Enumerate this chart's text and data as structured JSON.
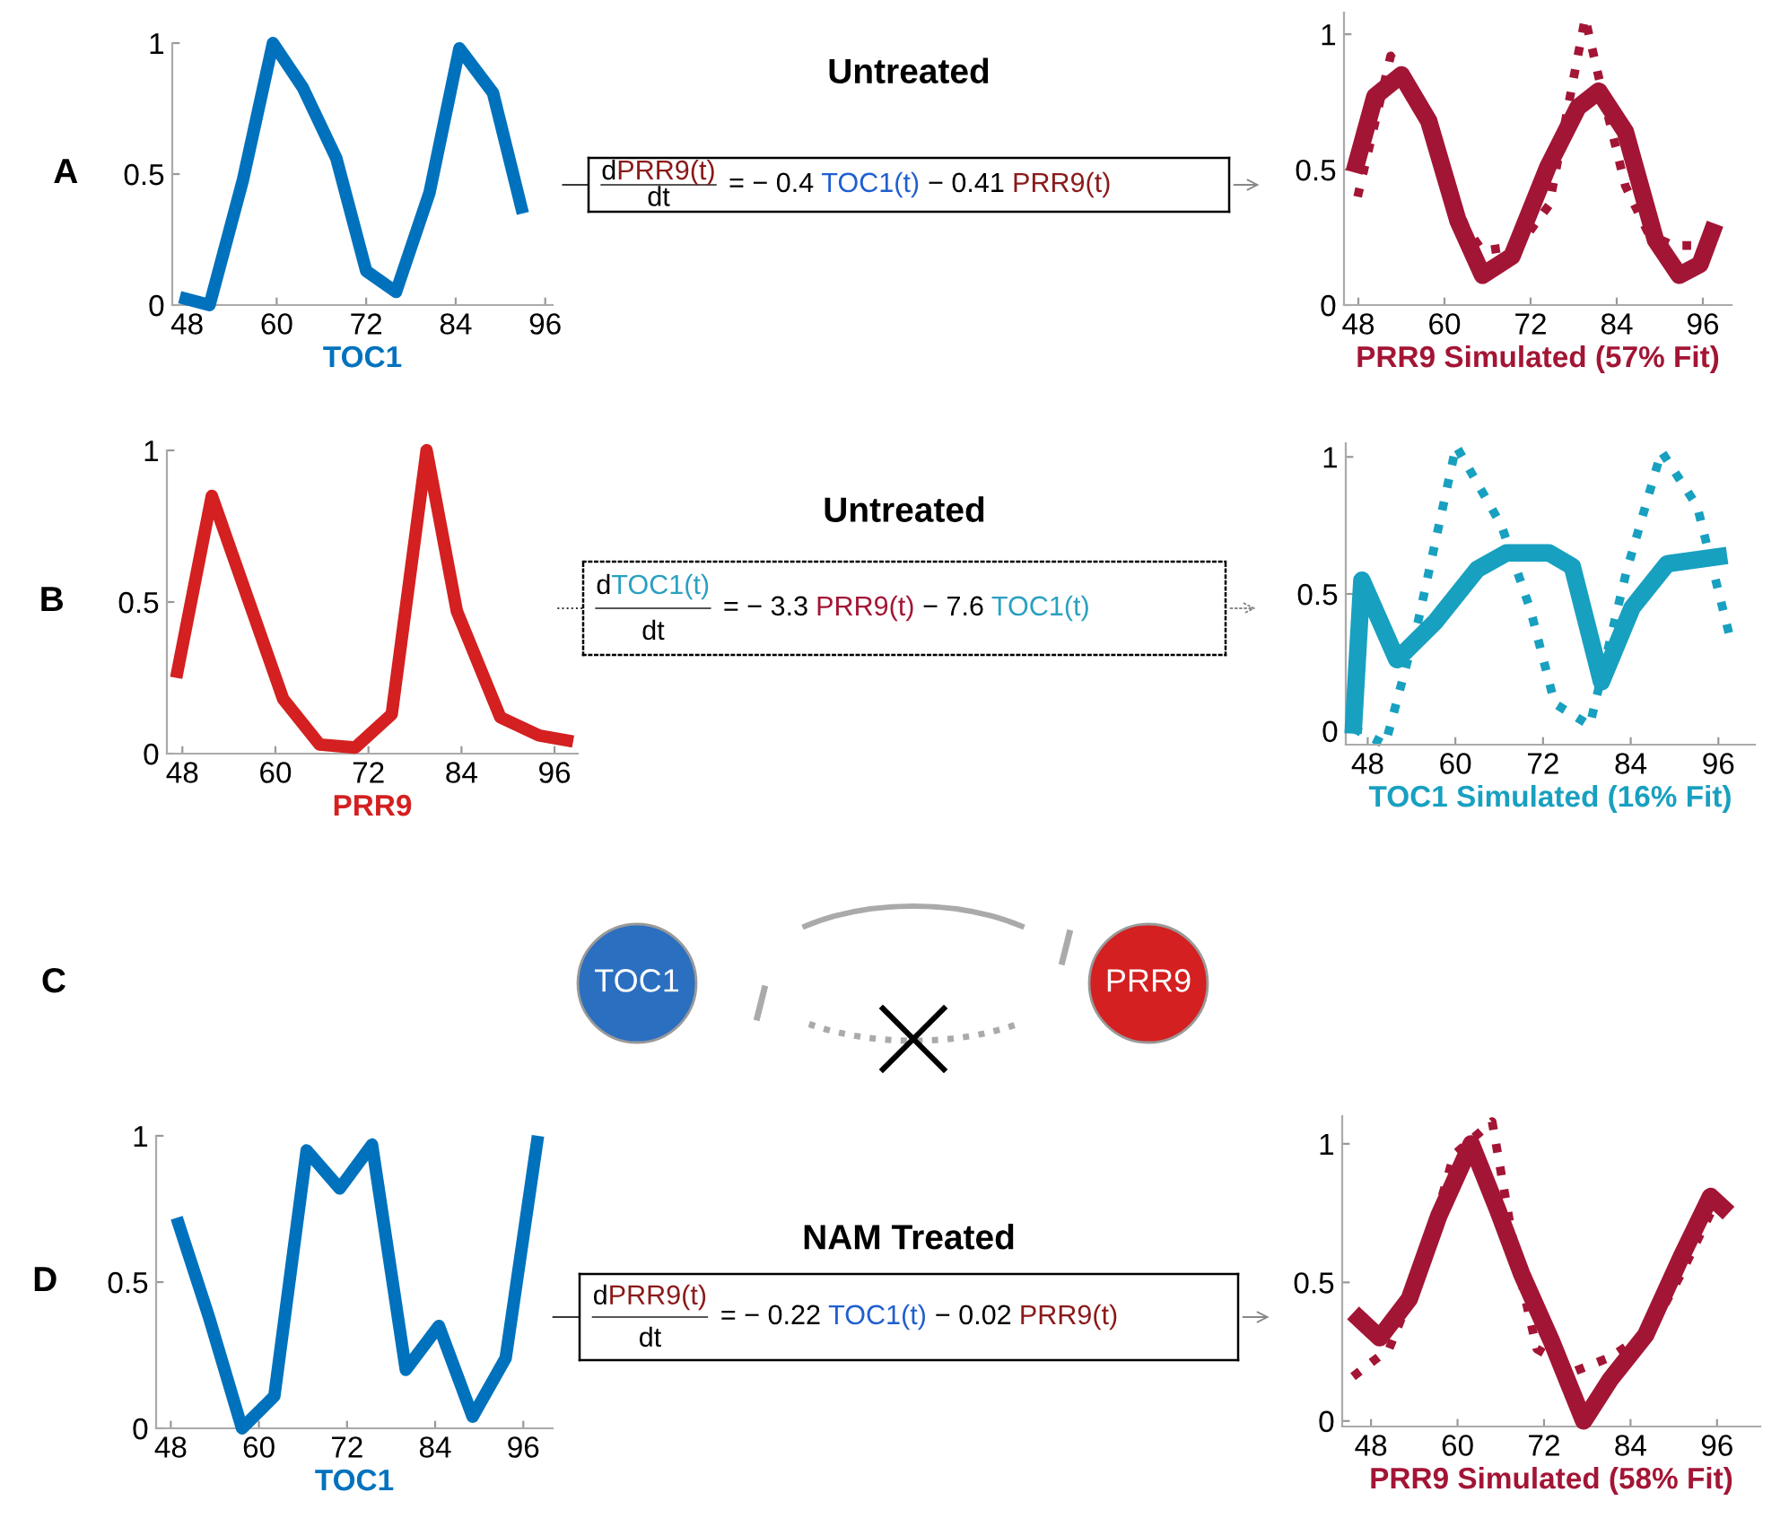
{
  "chart_data": [
    {
      "type": "line",
      "xlabel": "TOC1",
      "annotations": [
        "A"
      ],
      "xlim": [
        46,
        97
      ],
      "ylim": [
        0,
        1
      ],
      "xticks": [
        48,
        60,
        72,
        84,
        96
      ],
      "yticks": [
        0,
        0.5,
        1
      ],
      "series": [
        {
          "color": "#0072bd",
          "line_style": "solid",
          "x": [
            47,
            51,
            55.5,
            59.5,
            63.5,
            68,
            72,
            76,
            80.5,
            84.5,
            89,
            93
          ],
          "values": [
            0.03,
            0,
            0.48,
            1.0,
            0.83,
            0.56,
            0.13,
            0.05,
            0.43,
            0.98,
            0.81,
            0.35
          ]
        }
      ]
    },
    {
      "type": "other",
      "title": "Untreated",
      "annotations": [
        "d",
        "PRR9(t)",
        "dt",
        "= − 0.4 ",
        "TOC1(t)",
        " − 0.41 ",
        "PRR9(t)"
      ],
      "colors": [
        "#000000",
        "#8b1a1a",
        "#000000",
        "#000000",
        "#1f5fd0",
        "#000000",
        "#8b1a1a"
      ]
    },
    {
      "type": "line",
      "xlabel": "PRR9 Simulated (57% Fit)",
      "xlim": [
        46,
        100
      ],
      "ylim": [
        0,
        1.08
      ],
      "xticks": [
        48,
        60,
        72,
        84,
        96
      ],
      "yticks": [
        0,
        0.5,
        1
      ],
      "series": [
        {
          "color": "#a31535",
          "line_style": "solid",
          "x": [
            47.4,
            50.3,
            54,
            57.8,
            61.9,
            65.3,
            69.4,
            74.4,
            78.6,
            81.5,
            85.2,
            89.4,
            92.7,
            95.6,
            97.7
          ],
          "values": [
            0.49,
            0.77,
            0.85,
            0.68,
            0.31,
            0.11,
            0.18,
            0.51,
            0.73,
            0.79,
            0.64,
            0.24,
            0.11,
            0.15,
            0.3
          ]
        },
        {
          "color": "#a31535",
          "line_style": "dotted",
          "x": [
            47.9,
            52.5,
            57,
            62.9,
            65.3,
            70.4,
            74.6,
            77.5,
            79.6,
            81.5,
            85.2,
            88.5,
            91.9,
            95.2
          ],
          "values": [
            0.4,
            0.92,
            0.7,
            0.29,
            0.2,
            0.22,
            0.37,
            0.77,
            1.06,
            0.84,
            0.44,
            0.26,
            0.22,
            0.22
          ]
        }
      ]
    },
    {
      "type": "line",
      "xlabel": "PRR9",
      "annotations": [
        "B"
      ],
      "xlim": [
        46,
        99
      ],
      "ylim": [
        0,
        1
      ],
      "xticks": [
        48,
        60,
        72,
        84,
        96
      ],
      "yticks": [
        0,
        0.5,
        1
      ],
      "series": [
        {
          "color": "#d42020",
          "line_style": "solid",
          "x": [
            47.2,
            51.8,
            61,
            65.7,
            70.3,
            75,
            79.5,
            83.4,
            89,
            94,
            98.4
          ],
          "values": [
            0.25,
            0.85,
            0.18,
            0.03,
            0.02,
            0.13,
            1.0,
            0.47,
            0.12,
            0.06,
            0.04
          ]
        }
      ]
    },
    {
      "type": "other",
      "title": "Untreated",
      "annotations": [
        "d",
        "TOC1(t)",
        "dt",
        "= − 3.3 ",
        "PRR9(t)",
        " − 7.6 ",
        "TOC1(t)"
      ],
      "colors": [
        "#000000",
        "#2aa0c0",
        "#000000",
        "#000000",
        "#a31535",
        "#000000",
        "#2aa0c0"
      ]
    },
    {
      "type": "line",
      "xlabel": "TOC1 Simulated (16% Fit)",
      "xlim": [
        45,
        101
      ],
      "ylim": [
        -0.05,
        1.05
      ],
      "xticks": [
        48,
        60,
        72,
        84,
        96
      ],
      "yticks": [
        0,
        0.5,
        1
      ],
      "series": [
        {
          "color": "#18a0c0",
          "line_style": "solid",
          "x": [
            46,
            47.2,
            52,
            57.3,
            63,
            67,
            72.8,
            76,
            80,
            84.2,
            89,
            97.2
          ],
          "values": [
            -0.01,
            0.55,
            0.26,
            0.4,
            0.59,
            0.65,
            0.65,
            0.6,
            0.18,
            0.45,
            0.61,
            0.64
          ]
        },
        {
          "color": "#18a0c0",
          "line_style": "dotted",
          "x": [
            46,
            50.4,
            54.9,
            60.1,
            66.3,
            70.3,
            73.6,
            78.4,
            83.4,
            88.2,
            93.1,
            97.6
          ],
          "values": [
            0.01,
            -0.05,
            0.4,
            1.04,
            0.75,
            0.44,
            0.1,
            0.02,
            0.58,
            1.02,
            0.82,
            0.34
          ]
        }
      ]
    },
    {
      "type": "other",
      "annotations": [
        "C"
      ],
      "categories": [
        "TOC1",
        "PRR9"
      ],
      "colors": [
        "#2a6fc0",
        "#d42020"
      ]
    },
    {
      "type": "line",
      "xlabel": "TOC1",
      "annotations": [
        "D"
      ],
      "xlim": [
        46,
        100
      ],
      "ylim": [
        0,
        1
      ],
      "xticks": [
        48,
        60,
        72,
        84,
        96
      ],
      "yticks": [
        0,
        0.5,
        1
      ],
      "series": [
        {
          "color": "#0072bd",
          "line_style": "solid",
          "x": [
            48.8,
            53.2,
            57.7,
            62.1,
            66.5,
            71,
            75.4,
            80,
            84.5,
            89.1,
            93.6,
            98
          ],
          "values": [
            0.72,
            0.38,
            0,
            0.11,
            0.95,
            0.82,
            0.97,
            0.2,
            0.35,
            0.04,
            0.24,
            1.0
          ]
        }
      ]
    },
    {
      "type": "other",
      "title": "NAM Treated",
      "annotations": [
        "d",
        "PRR9(t)",
        "dt",
        "= − 0.22 ",
        "TOC1(t)",
        " − 0.02 ",
        "PRR9(t)"
      ],
      "colors": [
        "#000000",
        "#8b1a1a",
        "#000000",
        "#000000",
        "#1f5fd0",
        "#000000",
        "#8b1a1a"
      ]
    },
    {
      "type": "line",
      "xlabel": "PRR9 Simulated (58% Fit)",
      "xlim": [
        44,
        102
      ],
      "ylim": [
        -0.02,
        1.1
      ],
      "xticks": [
        48,
        60,
        72,
        84,
        96
      ],
      "yticks": [
        0,
        0.5,
        1
      ],
      "series": [
        {
          "color": "#a31535",
          "line_style": "solid",
          "x": [
            45.5,
            49.2,
            53.3,
            57.4,
            61.9,
            65.6,
            68.9,
            73,
            77.5,
            81.2,
            86.1,
            91,
            95.1,
            97.6
          ],
          "values": [
            0.39,
            0.3,
            0.44,
            0.74,
            1.0,
            0.76,
            0.53,
            0.29,
            0,
            0.15,
            0.31,
            0.59,
            0.81,
            0.75
          ]
        },
        {
          "color": "#a31535",
          "line_style": "dotted",
          "x": [
            45.5,
            50.5,
            55,
            59.5,
            64.8,
            68.1,
            71,
            76.3,
            81.2,
            86.9,
            91,
            95.1,
            97.6
          ],
          "values": [
            0.16,
            0.26,
            0.55,
            0.96,
            1.08,
            0.59,
            0.26,
            0.18,
            0.23,
            0.33,
            0.53,
            0.75,
            0.77
          ]
        }
      ]
    }
  ]
}
